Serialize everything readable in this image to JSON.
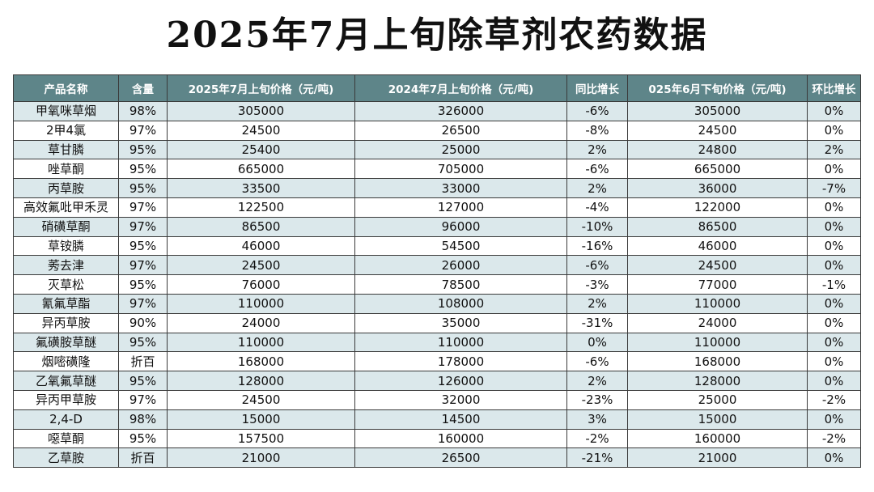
{
  "title": "2025年7月上旬除草剂农药数据",
  "colors": {
    "header_bg": "#5e8589",
    "header_text": "#ffffff",
    "row_alt": "#dbe8eb",
    "row_plain": "#ffffff"
  },
  "table": {
    "headers": [
      "产品名称",
      "含量",
      "2025年7月上旬价格（元/吨)",
      "2024年7月上旬价格（元/吨)",
      "同比增长",
      "025年6月下旬价格（元/吨)",
      "环比增长"
    ],
    "rows": [
      [
        "甲氧咪草烟",
        "98%",
        "305000",
        "326000",
        "-6%",
        "305000",
        "0%"
      ],
      [
        "2甲4氯",
        "97%",
        "24500",
        "26500",
        "-8%",
        "24500",
        "0%"
      ],
      [
        "草甘膦",
        "95%",
        "25400",
        "25000",
        "2%",
        "24800",
        "2%"
      ],
      [
        "唑草酮",
        "95%",
        "665000",
        "705000",
        "-6%",
        "665000",
        "0%"
      ],
      [
        "丙草胺",
        "95%",
        "33500",
        "33000",
        "2%",
        "36000",
        "-7%"
      ],
      [
        "高效氟吡甲禾灵",
        "97%",
        "122500",
        "127000",
        "-4%",
        "122000",
        "0%"
      ],
      [
        "硝磺草酮",
        "97%",
        "86500",
        "96000",
        "-10%",
        "86500",
        "0%"
      ],
      [
        "草铵膦",
        "95%",
        "46000",
        "54500",
        "-16%",
        "46000",
        "0%"
      ],
      [
        "莠去津",
        "97%",
        "24500",
        "26000",
        "-6%",
        "24500",
        "0%"
      ],
      [
        "灭草松",
        "95%",
        "76000",
        "78500",
        "-3%",
        "77000",
        "-1%"
      ],
      [
        "氰氟草酯",
        "97%",
        "110000",
        "108000",
        "2%",
        "110000",
        "0%"
      ],
      [
        "异丙草胺",
        "90%",
        "24000",
        "35000",
        "-31%",
        "24000",
        "0%"
      ],
      [
        "氟磺胺草醚",
        "95%",
        "110000",
        "110000",
        "0%",
        "110000",
        "0%"
      ],
      [
        "烟嘧磺隆",
        "折百",
        "168000",
        "178000",
        "-6%",
        "168000",
        "0%"
      ],
      [
        "乙氧氟草醚",
        "95%",
        "128000",
        "126000",
        "2%",
        "128000",
        "0%"
      ],
      [
        "异丙甲草胺",
        "97%",
        "24500",
        "32000",
        "-23%",
        "25000",
        "-2%"
      ],
      [
        "2,4-D",
        "98%",
        "15000",
        "14500",
        "3%",
        "15000",
        "0%"
      ],
      [
        "噁草酮",
        "95%",
        "157500",
        "160000",
        "-2%",
        "160000",
        "-2%"
      ],
      [
        "乙草胺",
        "折百",
        "21000",
        "26500",
        "-21%",
        "21000",
        "0%"
      ]
    ]
  }
}
